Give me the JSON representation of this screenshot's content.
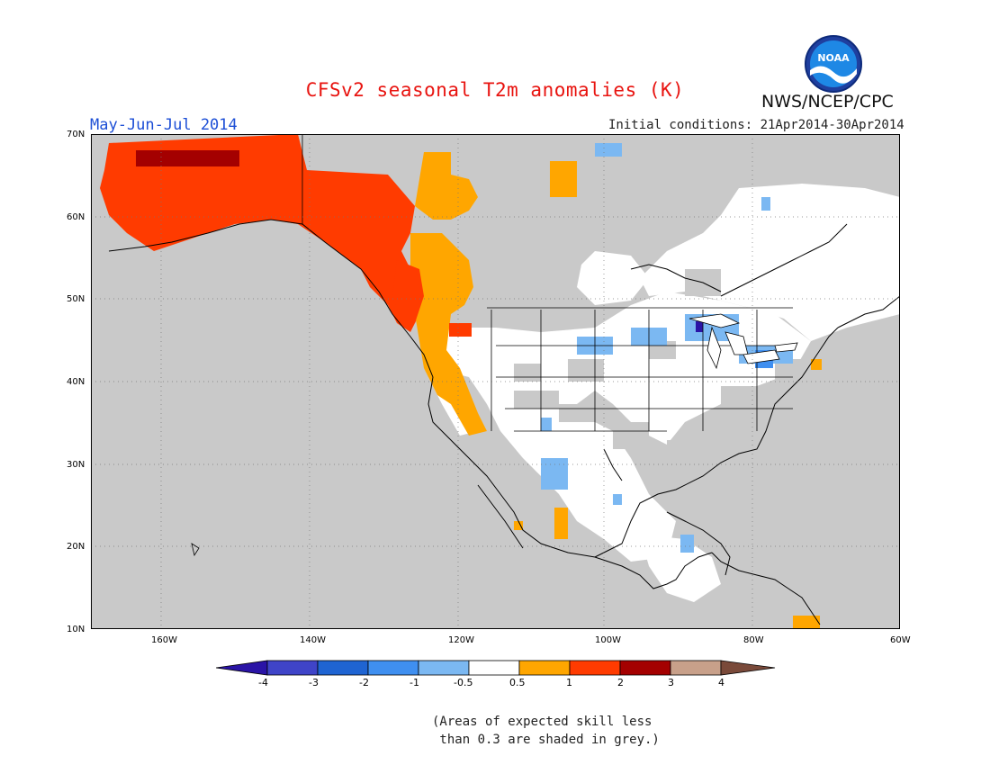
{
  "title": "CFSv2 seasonal T2m anomalies (K)",
  "organization": "NWS/NCEP/CPC",
  "logo_text": "NOAA",
  "period": "May-Jun-Jul 2014",
  "initial_conditions": "Initial conditions: 21Apr2014-30Apr2014",
  "lat_labels": [
    "70N",
    "60N",
    "50N",
    "40N",
    "30N",
    "20N",
    "10N"
  ],
  "lon_labels": [
    "160W",
    "140W",
    "120W",
    "100W",
    "80W",
    "60W"
  ],
  "colorbar": {
    "ticks": [
      "-4",
      "-3",
      "-2",
      "-1",
      "-0.5",
      "0.5",
      "1",
      "2",
      "3",
      "4"
    ],
    "colors": [
      "#2a14a6",
      "#3f44c8",
      "#1f64d2",
      "#3f8ff0",
      "#7bb8f2",
      "#ffffff",
      "#ffa600",
      "#ff3b00",
      "#a40000",
      "#c8a08a",
      "#7a4a3a"
    ]
  },
  "skill_note": "(Areas of expected skill less\n than 0.3 are shaded in grey.)",
  "colors": {
    "land_low_skill": "#c9c9c9",
    "ocean": "#c9c9c9",
    "neutral": "#ffffff",
    "warm_05_1": "#ffa600",
    "warm_1_2": "#ff3b00",
    "warm_2_3": "#a40000",
    "cool_m05_m1": "#7bb8f2",
    "cool_m1_m2": "#3f8ff0",
    "cool_m3_m4": "#2a14a6"
  }
}
